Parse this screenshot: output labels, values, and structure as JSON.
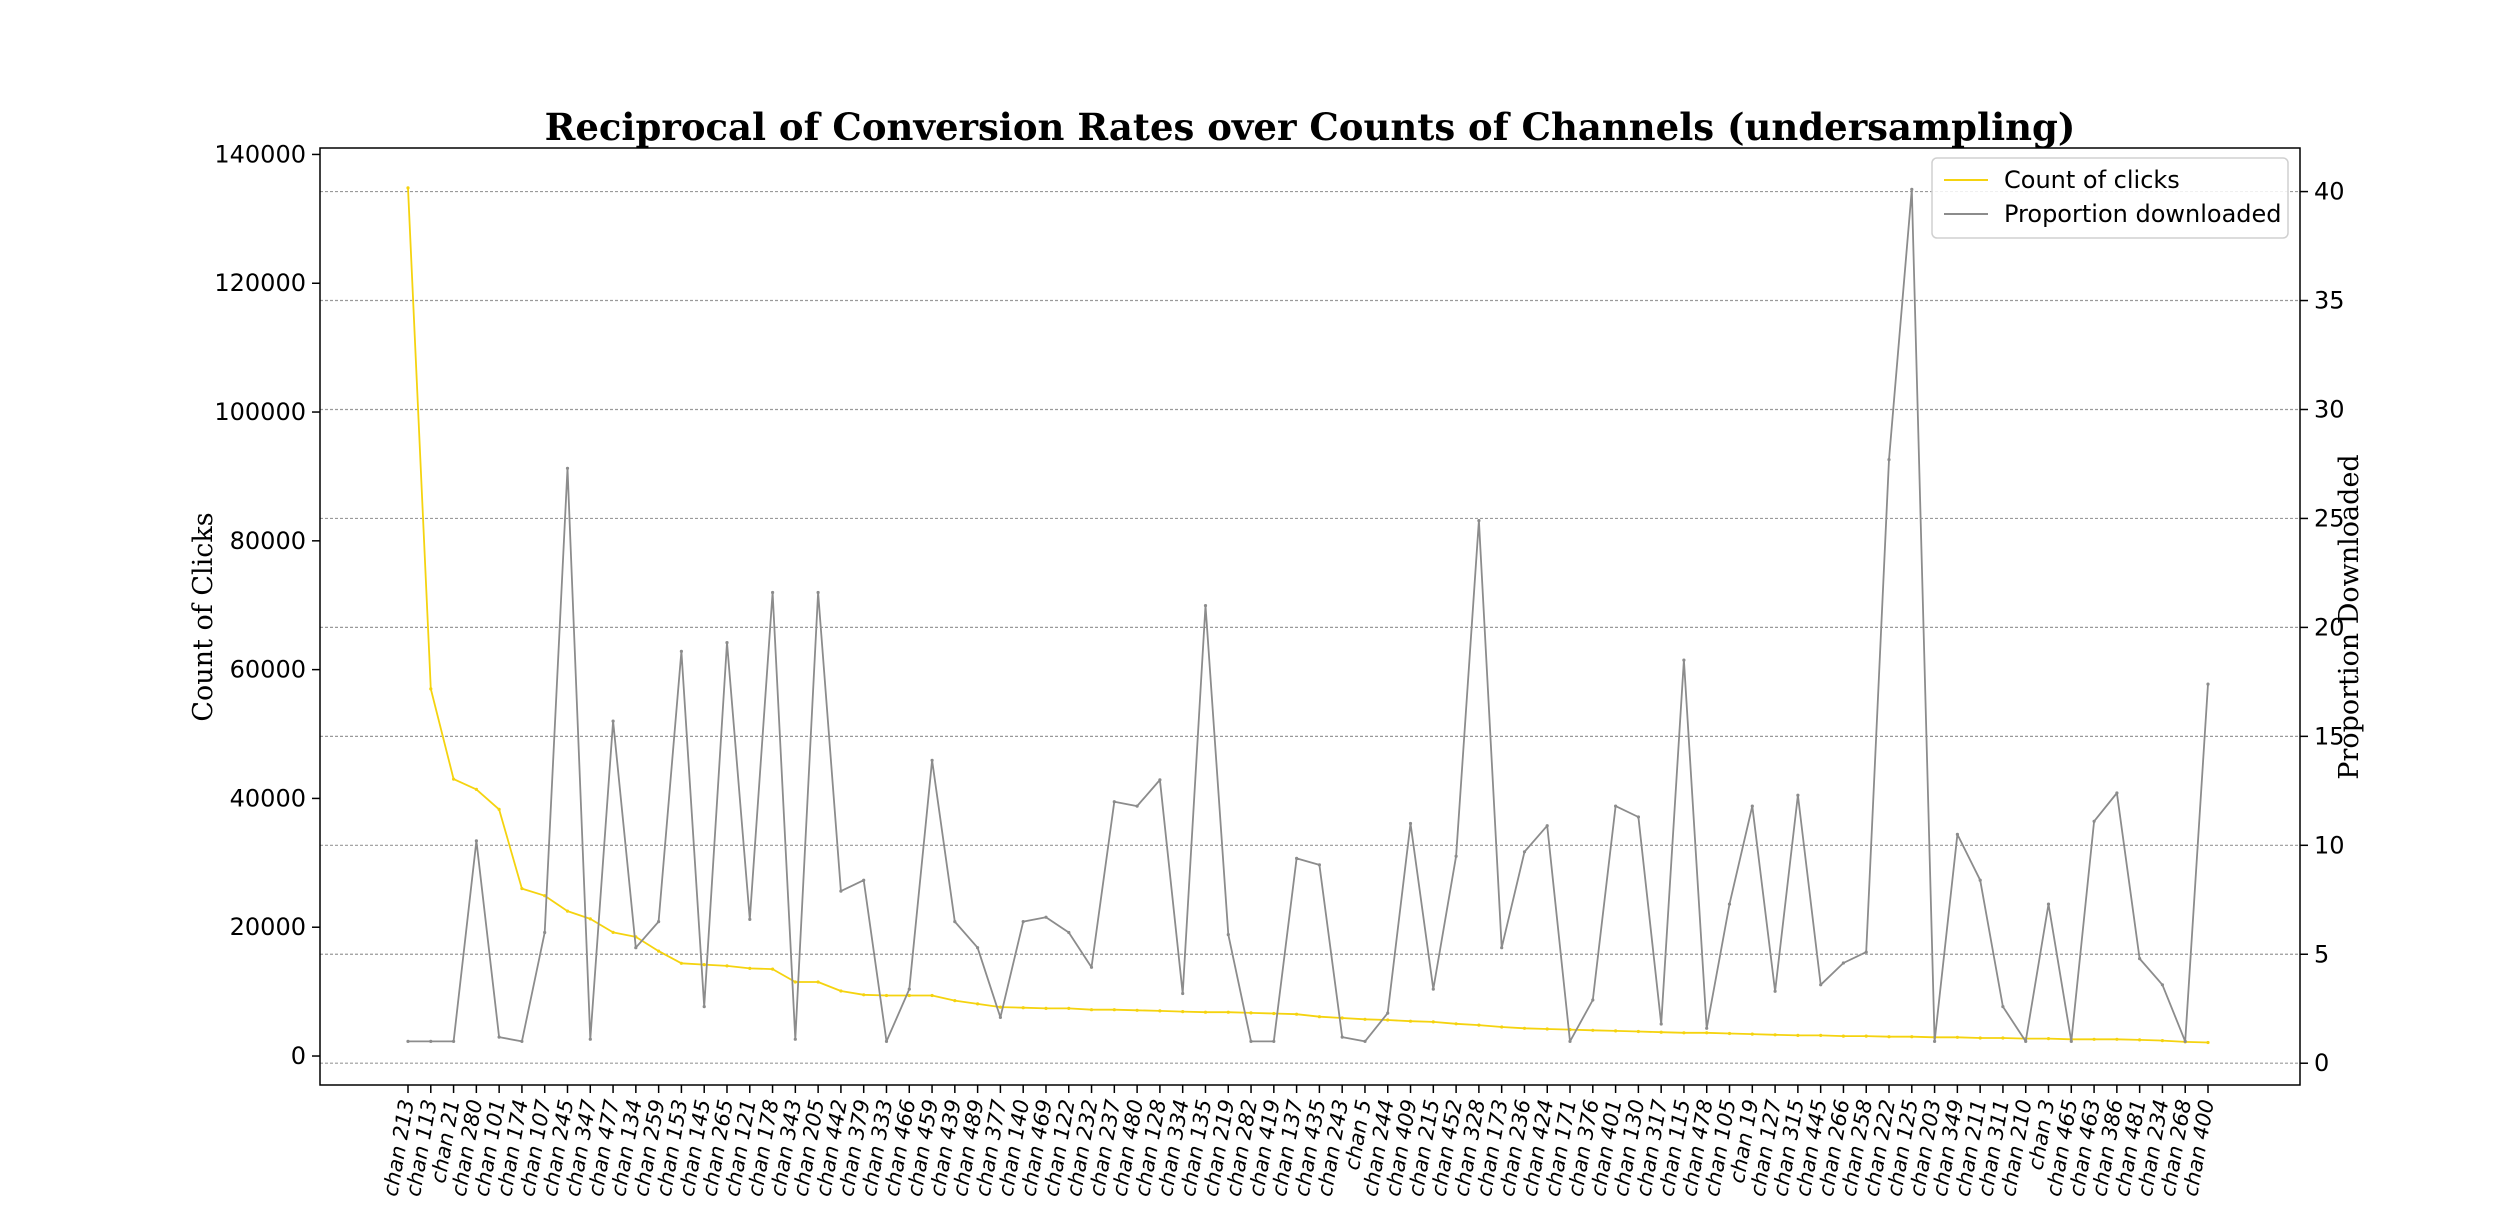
{
  "chart_data": {
    "type": "line",
    "title": "Reciprocal of Conversion Rates over Counts of Channels (undersampling)",
    "ylabel_left": "Count of Clicks",
    "ylabel_right": "Proportion Downloaded",
    "ylim_left": [
      -4500,
      141000
    ],
    "ylim_right": [
      -1,
      42
    ],
    "yticks_left": [
      0,
      20000,
      40000,
      60000,
      80000,
      100000,
      120000,
      140000
    ],
    "yticks_right": [
      0,
      5,
      10,
      15,
      20,
      25,
      30,
      35,
      40
    ],
    "grid": "horizontal, aligned to right-axis ticks",
    "legend_position": "top-right",
    "categories": [
      "chan 213",
      "chan 113",
      "chan 21",
      "chan 280",
      "chan 101",
      "chan 174",
      "chan 107",
      "chan 245",
      "chan 347",
      "chan 477",
      "chan 134",
      "chan 259",
      "chan 153",
      "chan 145",
      "chan 265",
      "chan 121",
      "chan 178",
      "chan 343",
      "chan 205",
      "chan 442",
      "chan 379",
      "chan 333",
      "chan 466",
      "chan 459",
      "chan 439",
      "chan 489",
      "chan 377",
      "chan 140",
      "chan 469",
      "chan 122",
      "chan 232",
      "chan 237",
      "chan 480",
      "chan 128",
      "chan 334",
      "chan 135",
      "chan 219",
      "chan 282",
      "chan 419",
      "chan 137",
      "chan 435",
      "chan 243",
      "chan 5",
      "chan 244",
      "chan 409",
      "chan 215",
      "chan 452",
      "chan 328",
      "chan 173",
      "chan 236",
      "chan 424",
      "chan 171",
      "chan 376",
      "chan 401",
      "chan 130",
      "chan 317",
      "chan 115",
      "chan 478",
      "chan 105",
      "chan 19",
      "chan 127",
      "chan 315",
      "chan 445",
      "chan 266",
      "chan 258",
      "chan 222",
      "chan 125",
      "chan 203",
      "chan 349",
      "chan 211",
      "chan 311",
      "chan 210",
      "chan 3",
      "chan 465",
      "chan 463",
      "chan 386",
      "chan 481",
      "chan 234",
      "chan 268",
      "chan 400"
    ],
    "series": [
      {
        "name": "Count of clicks",
        "axis": "left",
        "color": "#f5d30f",
        "values": [
          134800,
          57000,
          43000,
          41400,
          38300,
          26000,
          24900,
          22500,
          21300,
          19200,
          18500,
          16300,
          14400,
          14200,
          14000,
          13600,
          13500,
          11500,
          11500,
          10100,
          9500,
          9400,
          9400,
          9400,
          8600,
          8100,
          7600,
          7500,
          7400,
          7400,
          7200,
          7200,
          7100,
          7000,
          6900,
          6800,
          6800,
          6700,
          6600,
          6500,
          6100,
          5900,
          5700,
          5600,
          5400,
          5300,
          5000,
          4800,
          4500,
          4300,
          4200,
          4100,
          4000,
          3900,
          3800,
          3700,
          3600,
          3600,
          3500,
          3400,
          3300,
          3200,
          3200,
          3100,
          3100,
          3000,
          3000,
          2900,
          2900,
          2800,
          2800,
          2700,
          2700,
          2600,
          2600,
          2600,
          2500,
          2400,
          2200,
          2100
        ]
      },
      {
        "name": "Proportion downloaded",
        "axis": "right",
        "color": "#8c8c8c",
        "values": [
          1.0,
          1.0,
          1.0,
          10.2,
          1.2,
          1.0,
          6.0,
          27.3,
          1.1,
          15.7,
          5.3,
          6.5,
          18.9,
          2.6,
          19.3,
          6.6,
          21.6,
          1.1,
          21.6,
          7.9,
          8.4,
          1.0,
          3.4,
          13.9,
          6.5,
          5.3,
          2.1,
          6.5,
          6.7,
          6.0,
          4.4,
          12.0,
          11.8,
          13.0,
          3.2,
          21.0,
          5.9,
          1.0,
          1.0,
          9.4,
          9.1,
          1.2,
          1.0,
          2.3,
          11.0,
          3.4,
          9.5,
          24.9,
          5.3,
          9.7,
          10.9,
          1.0,
          2.9,
          11.8,
          11.3,
          1.8,
          18.5,
          1.6,
          7.3,
          11.8,
          3.3,
          12.3,
          3.6,
          4.6,
          5.1,
          27.7,
          40.1,
          1.0,
          10.5,
          8.4,
          2.6,
          1.0,
          7.3,
          1.0,
          11.1,
          12.4,
          4.8,
          3.6,
          1.0,
          17.4
        ]
      }
    ]
  }
}
